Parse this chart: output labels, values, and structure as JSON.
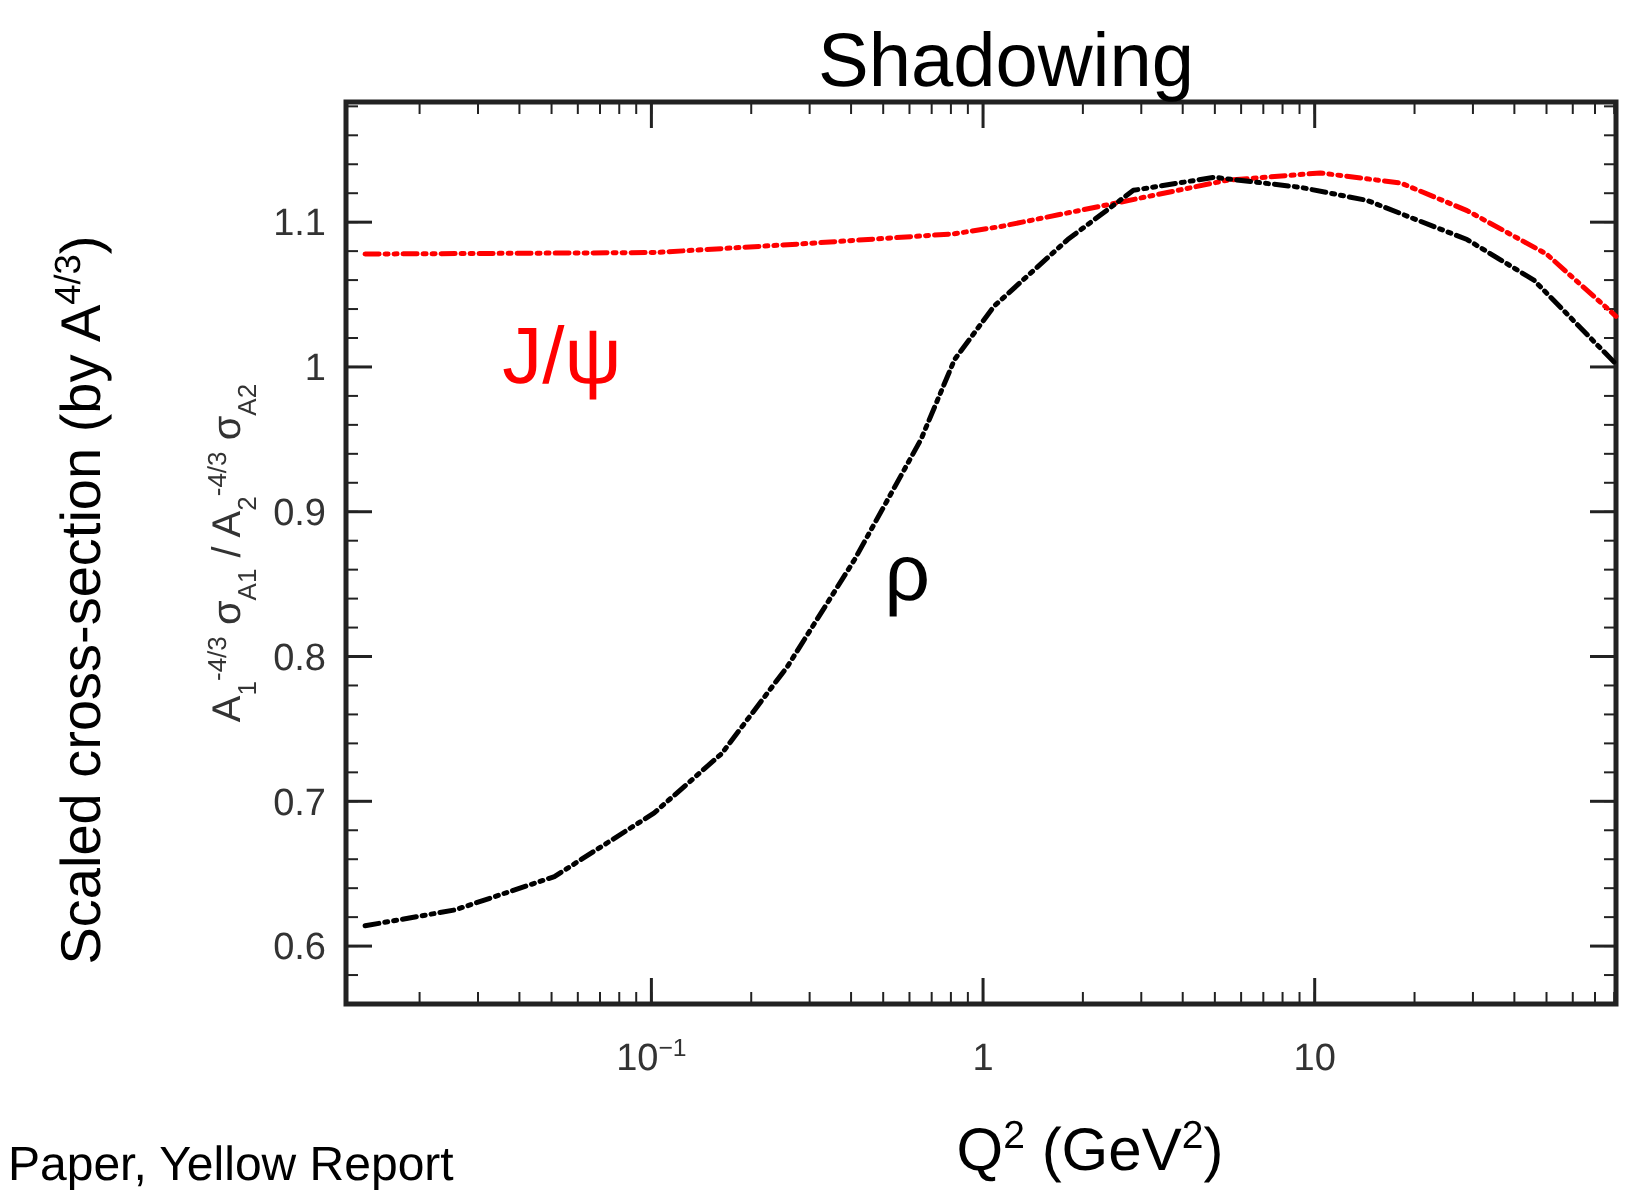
{
  "chart_data": {
    "type": "line",
    "title": "Shadowing",
    "xlabel": "Q$^{2}$ (GeV$^{2}$)",
    "ylabel": "A$_{1}$$^{-4/3}$ σ$_{A1}$ / A$_{2}$$^{-4/3}$ σ$_{A2}$",
    "annotations": [
      "Scaled cross-section (by A$^{4/3}$)",
      "Paper, Yellow Report"
    ],
    "log": "x",
    "xlim": [
      0.012,
      81
    ],
    "ylim": [
      0.56,
      1.183
    ],
    "xticks": [
      {
        "value": 0.1,
        "label": "10$^{−1}$"
      },
      1,
      10
    ],
    "yticks": [
      0.6,
      0.7,
      0.8,
      0.9,
      1,
      1.1
    ],
    "grid": false,
    "line_style": "dashed",
    "marker": "none",
    "series": [
      {
        "name": "J/ψ",
        "color": "#ff0000",
        "x": [
          0.0137,
          0.102,
          0.283,
          0.82,
          1.13,
          2.26,
          5.45,
          10.4,
          18.2,
          28.8,
          50,
          81
        ],
        "values": [
          1.078,
          1.079,
          1.085,
          1.092,
          1.097,
          1.111,
          1.129,
          1.134,
          1.127,
          1.108,
          1.078,
          1.035
        ]
      },
      {
        "name": "ρ",
        "color": "#000000",
        "x": [
          0.0137,
          0.0256,
          0.051,
          0.102,
          0.163,
          0.257,
          0.41,
          0.65,
          0.82,
          1.08,
          1.8,
          2.84,
          4.97,
          9.1,
          14.4,
          28.8,
          45.8,
          81
        ],
        "values": [
          0.614,
          0.625,
          0.648,
          0.692,
          0.733,
          0.793,
          0.867,
          0.95,
          1.005,
          1.042,
          1.088,
          1.122,
          1.131,
          1.124,
          1.115,
          1.088,
          1.06,
          1.002
        ]
      }
    ]
  }
}
